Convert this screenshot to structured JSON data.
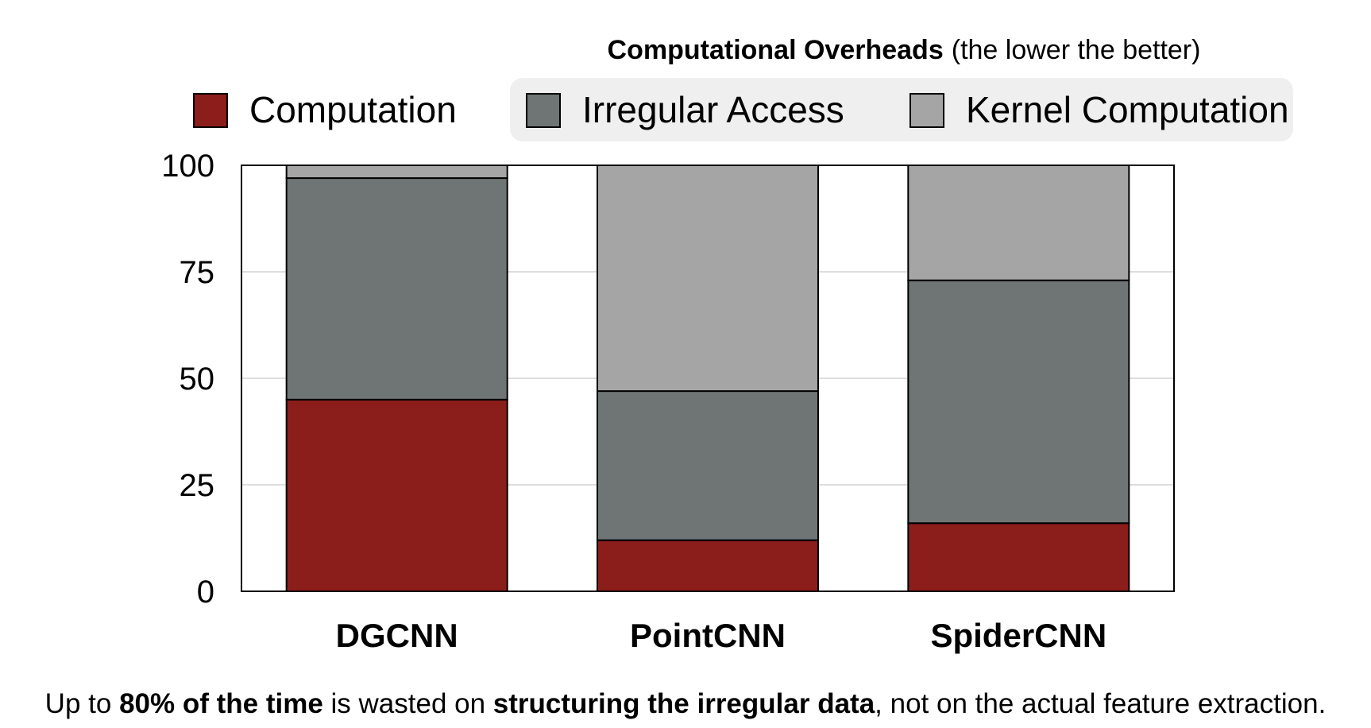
{
  "chart_data": {
    "type": "bar",
    "stacked": true,
    "title_bold": "Computational Overheads",
    "title_rest": "(the lower the better)",
    "categories": [
      "DGCNN",
      "PointCNN",
      "SpiderCNN"
    ],
    "series": [
      {
        "name": "Computation",
        "color": "#8b1e1a",
        "values": [
          45,
          12,
          16
        ]
      },
      {
        "name": "Irregular Access",
        "color": "#6f7574",
        "values": [
          52,
          35,
          57
        ]
      },
      {
        "name": "Kernel Computation",
        "color": "#a5a5a5",
        "values": [
          3,
          53,
          27
        ]
      }
    ],
    "yticks": [
      "0",
      "25",
      "50",
      "75",
      "100"
    ],
    "ylim": [
      0,
      100
    ],
    "grid": true,
    "legend_position": "top",
    "xlabel": "",
    "ylabel": ""
  },
  "caption": {
    "p1": "Up to ",
    "b1": "80% of the time",
    "p2": " is wasted on ",
    "b2": "structuring the irregular data",
    "p3": ", not on the actual feature extraction."
  }
}
